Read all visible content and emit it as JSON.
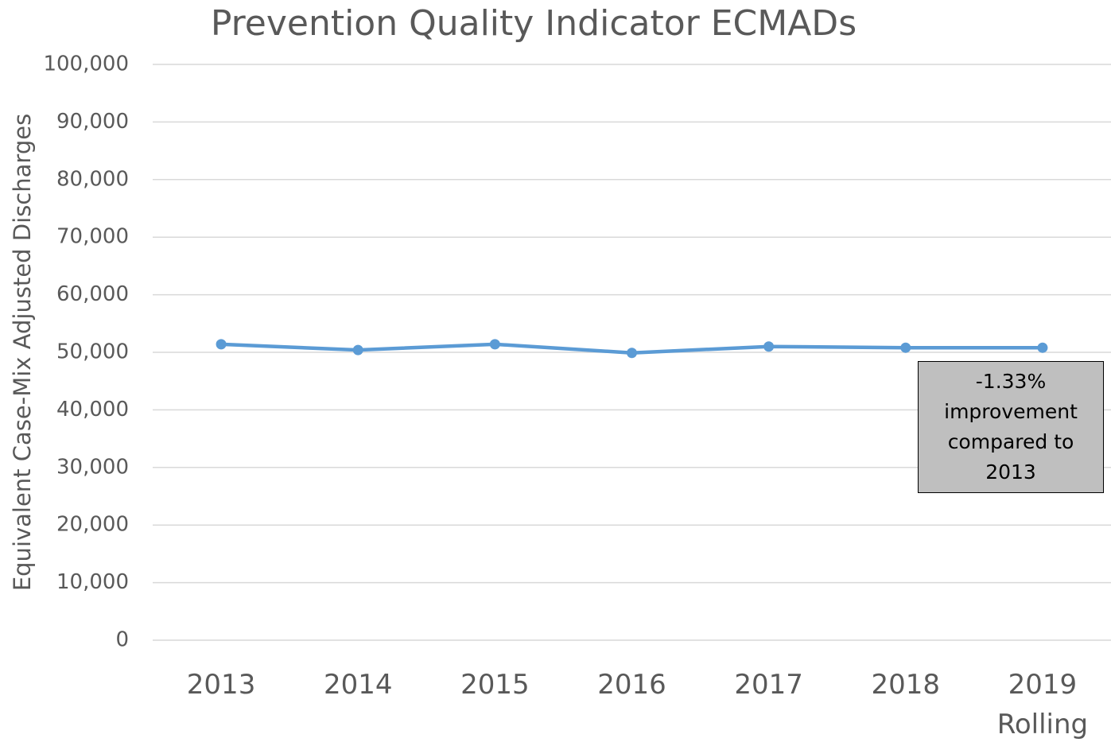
{
  "chart_data": {
    "type": "line",
    "title": "Prevention Quality Indicator ECMADs",
    "y_label": "Equivalent Case-Mix Adjusted Discharges",
    "categories": [
      "2013",
      "2014",
      "2015",
      "2016",
      "2017",
      "2018",
      "2019 Rolling"
    ],
    "series": [
      {
        "name": "ECMADs",
        "color": "#5b9bd5",
        "values": [
          51400,
          50400,
          51400,
          49900,
          51000,
          50800,
          50800
        ]
      }
    ],
    "ylim": [
      0,
      100000
    ],
    "yticks": [
      0,
      {
        "value": 10000,
        "label": "10,000"
      },
      {
        "value": 20000,
        "label": "20,000"
      },
      {
        "value": 30000,
        "label": "30,000"
      },
      {
        "value": 40000,
        "label": "40,000"
      },
      {
        "value": 50000,
        "label": "50,000"
      },
      {
        "value": 60000,
        "label": "60,000"
      },
      {
        "value": 70000,
        "label": "70,000"
      },
      {
        "value": 80000,
        "label": "80,000"
      },
      {
        "value": 90000,
        "label": "90,000"
      },
      {
        "value": 100000,
        "label": "100,000"
      }
    ],
    "grid": true,
    "annotation": "-1.33% improvement compared to 2013"
  }
}
